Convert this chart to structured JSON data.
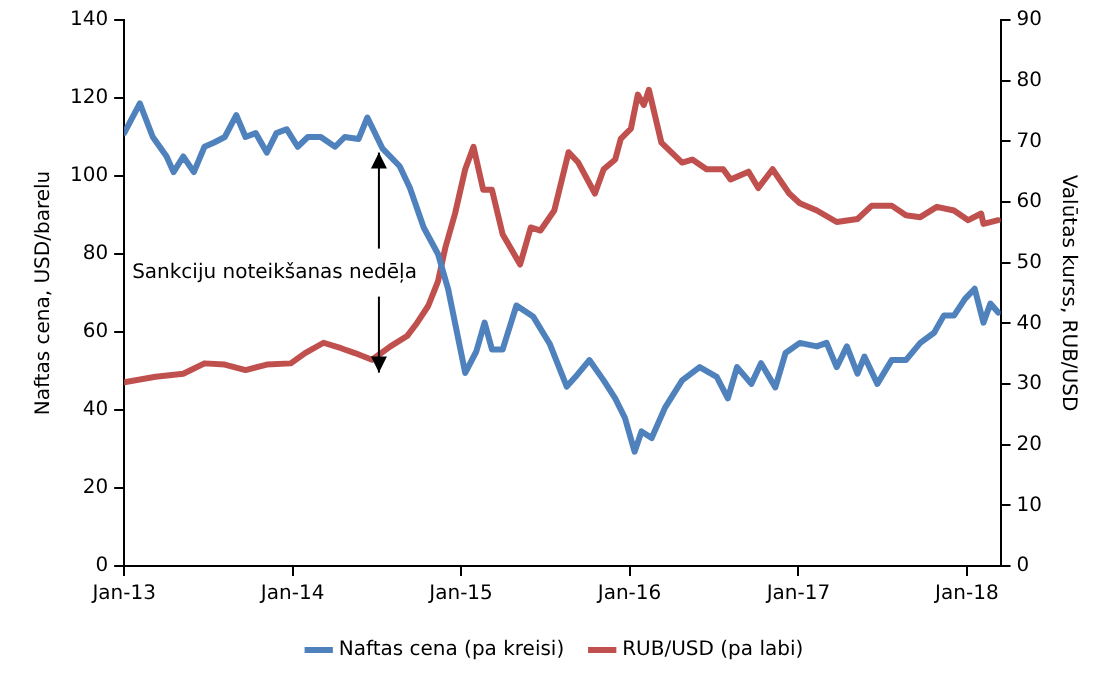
{
  "chart_data": {
    "type": "line",
    "ylabel": "Naftas cena, USD/barelu",
    "y2label": "Valūtas kurss, RUB/USD",
    "xlim": [
      "2013-01-01",
      "2018-03-15"
    ],
    "xticks": [
      {
        "value": "2013-01",
        "label": "Jan-13"
      },
      {
        "value": "2014-01",
        "label": "Jan-14"
      },
      {
        "value": "2015-01",
        "label": "Jan-15"
      },
      {
        "value": "2016-01",
        "label": "Jan-16"
      },
      {
        "value": "2017-01",
        "label": "Jan-17"
      },
      {
        "value": "2018-01",
        "label": "Jan-18"
      }
    ],
    "ylim": [
      0,
      140
    ],
    "yticks": [
      0,
      20,
      40,
      60,
      80,
      100,
      120,
      140
    ],
    "y2lim": [
      0,
      90
    ],
    "y2ticks": [
      0,
      10,
      20,
      30,
      40,
      50,
      60,
      70,
      80,
      90
    ],
    "grid": false,
    "legend": "bottom",
    "marker": "none",
    "line_style": "solid",
    "annotations": [
      {
        "text": "Sankciju noteikšanas nedēļa",
        "x": "2014-07-07",
        "y": 106
      }
    ],
    "series": [
      {
        "name": "Naftas cena (pa kreisi)",
        "color": "#4f81bd",
        "x": [
          "2013-01-01",
          "2013-02-04",
          "2013-03-04",
          "2013-04-03",
          "2013-04-18",
          "2013-05-09",
          "2013-06-01",
          "2013-06-24",
          "2013-07-15",
          "2013-08-07",
          "2013-09-01",
          "2013-09-21",
          "2013-10-13",
          "2013-11-06",
          "2013-11-27",
          "2013-12-19",
          "2014-01-12",
          "2014-02-03",
          "2014-03-03",
          "2014-04-03",
          "2014-04-24",
          "2014-05-24",
          "2014-06-12",
          "2014-07-15",
          "2014-08-21",
          "2014-09-12",
          "2014-10-12",
          "2014-11-12",
          "2014-12-04",
          "2015-01-10",
          "2015-02-03",
          "2015-02-21",
          "2015-03-09",
          "2015-04-01",
          "2015-05-01",
          "2015-06-06",
          "2015-07-12",
          "2015-08-18",
          "2015-09-06",
          "2015-10-06",
          "2015-11-06",
          "2015-12-01",
          "2015-12-22",
          "2016-01-12",
          "2016-01-27",
          "2016-02-18",
          "2016-03-18",
          "2016-04-24",
          "2016-06-01",
          "2016-07-08",
          "2016-08-01",
          "2016-08-21",
          "2016-09-21",
          "2016-10-12",
          "2016-11-12",
          "2016-12-04",
          "2017-01-04",
          "2017-02-10",
          "2017-03-03",
          "2017-03-25",
          "2017-04-16",
          "2017-05-09",
          "2017-05-24",
          "2017-06-21",
          "2017-07-22",
          "2017-08-22",
          "2017-09-22",
          "2017-10-22",
          "2017-11-12",
          "2017-12-04",
          "2017-12-28",
          "2018-01-18",
          "2018-02-06",
          "2018-02-21",
          "2018-03-10"
        ],
        "values": [
          111,
          118.6,
          110,
          105,
          101,
          105,
          101,
          107.5,
          108.6,
          110,
          115.6,
          110,
          111,
          106,
          111,
          112,
          107.5,
          110,
          110,
          107.5,
          110,
          109.5,
          115,
          107,
          102.5,
          97,
          86.8,
          80,
          71,
          49.5,
          55,
          62.4,
          55.5,
          55.5,
          66.8,
          64,
          57,
          46,
          48.5,
          52.8,
          47.6,
          43,
          38,
          29.3,
          34.5,
          32.8,
          40.6,
          47.6,
          51,
          48.5,
          43,
          51,
          46.7,
          52,
          45.8,
          54.6,
          57.2,
          56.3,
          57.2,
          51,
          56.3,
          49.3,
          53.7,
          46.7,
          52.8,
          52.8,
          57.2,
          59.8,
          64.2,
          64.2,
          68.5,
          71.1,
          62.4,
          67.3,
          65
        ]
      },
      {
        "name": "RUB/USD (pa labi)",
        "color": "#c0504d",
        "axis": "y2",
        "x": [
          "2013-01-01",
          "2013-03-10",
          "2013-05-09",
          "2013-06-24",
          "2013-08-07",
          "2013-09-21",
          "2013-11-06",
          "2013-12-28",
          "2014-01-28",
          "2014-03-09",
          "2014-04-16",
          "2014-05-16",
          "2014-06-22",
          "2014-08-01",
          "2014-09-06",
          "2014-09-28",
          "2014-10-22",
          "2014-11-12",
          "2014-11-28",
          "2014-12-19",
          "2015-01-10",
          "2015-01-28",
          "2015-02-18",
          "2015-03-09",
          "2015-04-01",
          "2015-05-09",
          "2015-06-01",
          "2015-06-22",
          "2015-07-22",
          "2015-08-22",
          "2015-09-12",
          "2015-10-18",
          "2015-11-06",
          "2015-12-01",
          "2015-12-13",
          "2016-01-04",
          "2016-01-19",
          "2016-02-01",
          "2016-02-12",
          "2016-03-10",
          "2016-04-24",
          "2016-05-16",
          "2016-06-16",
          "2016-07-22",
          "2016-08-07",
          "2016-09-15",
          "2016-10-06",
          "2016-11-06",
          "2016-12-12",
          "2017-01-04",
          "2017-02-10",
          "2017-03-25",
          "2017-05-09",
          "2017-06-09",
          "2017-07-22",
          "2017-08-22",
          "2017-09-22",
          "2017-10-28",
          "2017-12-04",
          "2018-01-04",
          "2018-02-01",
          "2018-02-06",
          "2018-03-10"
        ],
        "values": [
          30.3,
          31.2,
          31.7,
          33.4,
          33.2,
          32.3,
          33.2,
          33.4,
          35.1,
          36.8,
          35.9,
          35.1,
          34,
          36.2,
          37.9,
          40.1,
          42.9,
          46.9,
          52.5,
          58.1,
          65.4,
          69.1,
          62,
          62,
          54.7,
          49.7,
          55.8,
          55.3,
          58.6,
          68.2,
          66.5,
          61.4,
          65.4,
          67,
          70.4,
          72.1,
          77.7,
          76,
          78.5,
          69.8,
          66.5,
          67,
          65.4,
          65.4,
          63.7,
          65,
          62.3,
          65.4,
          61.4,
          59.8,
          58.6,
          56.7,
          57.2,
          59.4,
          59.4,
          57.8,
          57.5,
          59.2,
          58.6,
          57,
          58.1,
          56.4,
          57
        ]
      }
    ]
  }
}
